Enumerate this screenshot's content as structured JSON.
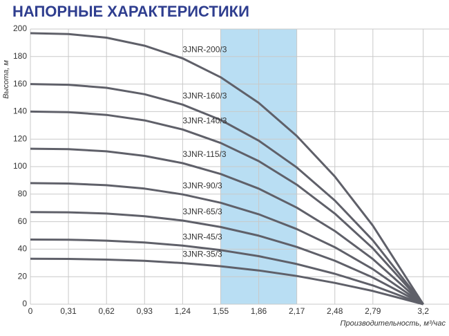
{
  "chart_data": {
    "type": "line",
    "title": "НАПОРНЫЕ ХАРАКТЕРИСТИКИ",
    "y_label": "Высота, м",
    "x_label": "Производительность, м³/час",
    "x": [
      0,
      0.31,
      0.62,
      0.93,
      1.24,
      1.55,
      1.86,
      2.17,
      2.48,
      2.79,
      3.2
    ],
    "series": [
      {
        "name": "3JNR-200/3",
        "color": "#5f6069",
        "values": [
          197,
          196.4,
          193.7,
          187.9,
          178.7,
          164.9,
          146.4,
          122.3,
          92.8,
          57.1,
          0
        ]
      },
      {
        "name": "3JNR-160/3",
        "color": "#5f6069",
        "values": [
          160,
          159.5,
          157.3,
          152.6,
          145.1,
          133.9,
          118.9,
          99.4,
          75.4,
          46.4,
          0
        ]
      },
      {
        "name": "3JNR-140/3",
        "color": "#5f6069",
        "values": [
          140,
          139.6,
          137.6,
          133.6,
          127,
          117.2,
          104,
          86.9,
          65.9,
          40.6,
          0
        ]
      },
      {
        "name": "3JNR-115/3",
        "color": "#5f6069",
        "values": [
          113,
          112.7,
          111.1,
          107.8,
          102.5,
          94.6,
          84,
          70.2,
          53.2,
          32.8,
          0
        ]
      },
      {
        "name": "3JNR-90/3",
        "color": "#5f6069",
        "values": [
          88,
          87.7,
          86.5,
          84,
          79.8,
          73.7,
          65.4,
          54.6,
          41.4,
          25.5,
          0
        ]
      },
      {
        "name": "3JNR-65/3",
        "color": "#5f6069",
        "values": [
          67,
          66.8,
          65.9,
          63.9,
          60.8,
          56.1,
          49.8,
          41.6,
          31.6,
          19.4,
          0
        ]
      },
      {
        "name": "3JNR-45/3",
        "color": "#5f6069",
        "values": [
          47,
          46.9,
          46.2,
          44.8,
          42.6,
          39.3,
          34.9,
          29.2,
          22.1,
          13.6,
          0
        ]
      },
      {
        "name": "3JNR-35/3",
        "color": "#5f6069",
        "values": [
          33,
          32.9,
          32.4,
          31.5,
          29.9,
          27.6,
          24.5,
          20.5,
          15.5,
          9.6,
          0
        ]
      }
    ],
    "band": [
      1.55,
      2.17
    ],
    "band_color": "#b9def3",
    "xlim": [
      0,
      3.41
    ],
    "ylim": [
      0,
      200
    ],
    "xticks": [
      0,
      {
        "value": 0.31,
        "label": "0,31"
      },
      {
        "value": 0.62,
        "label": "0,62"
      },
      {
        "value": 0.93,
        "label": "0,93"
      },
      {
        "value": 1.24,
        "label": "1,24"
      },
      {
        "value": 1.55,
        "label": "1,55"
      },
      {
        "value": 1.86,
        "label": "1,86"
      },
      {
        "value": 2.17,
        "label": "2,17"
      },
      {
        "value": 2.48,
        "label": "2,48"
      },
      {
        "value": 2.79,
        "label": "2,79"
      },
      {
        "value": 3.2,
        "label": "3,2"
      }
    ],
    "yticks": [
      0,
      20,
      40,
      60,
      80,
      100,
      120,
      140,
      160,
      180,
      200
    ],
    "grid": true
  }
}
